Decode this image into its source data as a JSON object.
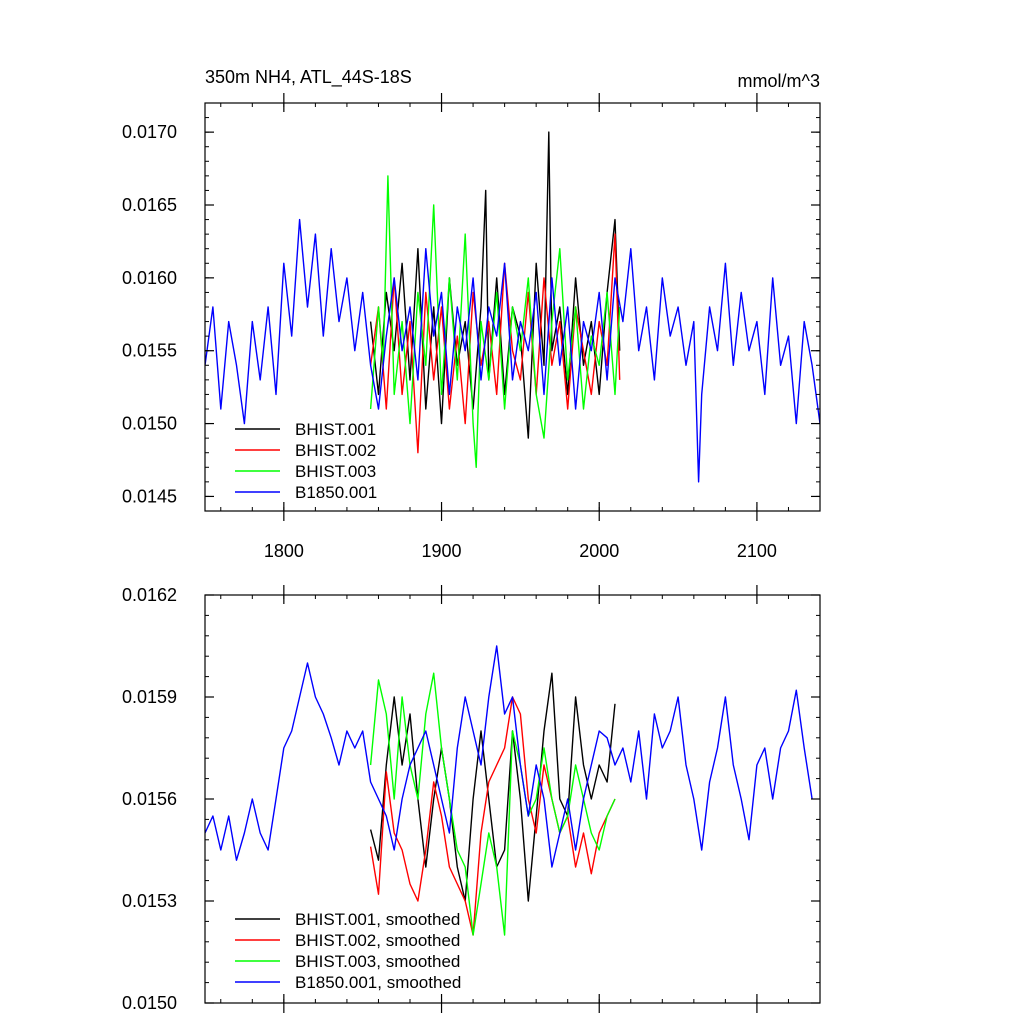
{
  "chart_data": [
    {
      "type": "line",
      "title": "350m NH4, ATL_44S-18S",
      "units": "mmol/m^3",
      "xlim": [
        1750,
        2140
      ],
      "ylim": [
        0.0144,
        0.0172
      ],
      "xticks": [
        1800,
        1900,
        2000,
        2100
      ],
      "xtick_labels": [
        "1800",
        "1900",
        "2000",
        "2100"
      ],
      "yticks": [
        0.0145,
        0.015,
        0.0155,
        0.016,
        0.0165,
        0.017
      ],
      "ytick_labels": [
        "0.0145",
        "0.0150",
        "0.0155",
        "0.0160",
        "0.0165",
        "0.0170"
      ],
      "grid": false,
      "legend_position": "bottom-left",
      "series": [
        {
          "name": "BHIST.001",
          "color": "#000000",
          "x": [
            1855,
            1860,
            1865,
            1870,
            1875,
            1880,
            1885,
            1890,
            1895,
            1900,
            1905,
            1910,
            1915,
            1920,
            1925,
            1928,
            1930,
            1935,
            1940,
            1945,
            1950,
            1955,
            1960,
            1965,
            1968,
            1970,
            1975,
            1980,
            1985,
            1990,
            1995,
            2000,
            2005,
            2010,
            2013
          ],
          "y": [
            0.0157,
            0.0152,
            0.0159,
            0.0155,
            0.0161,
            0.0153,
            0.0162,
            0.0151,
            0.0158,
            0.015,
            0.016,
            0.0154,
            0.0157,
            0.0151,
            0.0158,
            0.0166,
            0.0153,
            0.016,
            0.0152,
            0.0158,
            0.0156,
            0.0149,
            0.0161,
            0.0154,
            0.017,
            0.0155,
            0.0158,
            0.0152,
            0.016,
            0.0154,
            0.0157,
            0.0152,
            0.0159,
            0.0164,
            0.0155
          ]
        },
        {
          "name": "BHIST.002",
          "color": "#ff0000",
          "x": [
            1855,
            1860,
            1865,
            1870,
            1875,
            1880,
            1885,
            1890,
            1895,
            1900,
            1905,
            1910,
            1915,
            1920,
            1925,
            1930,
            1935,
            1940,
            1945,
            1950,
            1955,
            1960,
            1965,
            1970,
            1975,
            1980,
            1985,
            1990,
            1995,
            2000,
            2005,
            2010,
            2013
          ],
          "y": [
            0.0154,
            0.0158,
            0.0151,
            0.016,
            0.0152,
            0.0157,
            0.0148,
            0.0159,
            0.0153,
            0.0158,
            0.0151,
            0.0156,
            0.015,
            0.0159,
            0.0154,
            0.0157,
            0.0152,
            0.0161,
            0.0155,
            0.0153,
            0.0159,
            0.0152,
            0.016,
            0.0154,
            0.0157,
            0.0151,
            0.0158,
            0.0155,
            0.0152,
            0.0157,
            0.0154,
            0.0163,
            0.0153
          ]
        },
        {
          "name": "BHIST.003",
          "color": "#00ff00",
          "x": [
            1855,
            1860,
            1863,
            1866,
            1870,
            1875,
            1880,
            1885,
            1890,
            1895,
            1900,
            1905,
            1910,
            1915,
            1920,
            1922,
            1925,
            1930,
            1935,
            1940,
            1945,
            1950,
            1955,
            1960,
            1965,
            1970,
            1975,
            1980,
            1985,
            1990,
            1995,
            2000,
            2005,
            2010,
            2013
          ],
          "y": [
            0.0151,
            0.0158,
            0.0154,
            0.0167,
            0.0152,
            0.0157,
            0.015,
            0.0159,
            0.0154,
            0.0165,
            0.0152,
            0.016,
            0.0153,
            0.0163,
            0.015,
            0.0147,
            0.0157,
            0.0153,
            0.0159,
            0.0151,
            0.0158,
            0.0155,
            0.016,
            0.0152,
            0.0149,
            0.0157,
            0.0162,
            0.0153,
            0.0158,
            0.0151,
            0.0156,
            0.0154,
            0.0159,
            0.0152,
            0.0158
          ]
        },
        {
          "name": "B1850.001",
          "color": "#0000ff",
          "x": [
            1750,
            1755,
            1760,
            1765,
            1770,
            1775,
            1780,
            1785,
            1790,
            1795,
            1800,
            1805,
            1810,
            1815,
            1820,
            1825,
            1830,
            1835,
            1840,
            1845,
            1850,
            1855,
            1860,
            1865,
            1870,
            1875,
            1880,
            1885,
            1890,
            1895,
            1900,
            1905,
            1910,
            1915,
            1920,
            1925,
            1930,
            1935,
            1940,
            1945,
            1950,
            1955,
            1960,
            1965,
            1970,
            1975,
            1980,
            1985,
            1990,
            1995,
            2000,
            2005,
            2010,
            2015,
            2020,
            2025,
            2030,
            2035,
            2040,
            2045,
            2050,
            2055,
            2060,
            2063,
            2065,
            2070,
            2075,
            2080,
            2085,
            2090,
            2095,
            2100,
            2105,
            2110,
            2115,
            2120,
            2125,
            2130,
            2135,
            2140
          ],
          "y": [
            0.0154,
            0.0158,
            0.0151,
            0.0157,
            0.0154,
            0.015,
            0.0157,
            0.0153,
            0.0158,
            0.0152,
            0.0161,
            0.0156,
            0.0164,
            0.0158,
            0.0163,
            0.0156,
            0.0162,
            0.0157,
            0.016,
            0.0155,
            0.0159,
            0.0154,
            0.0151,
            0.0156,
            0.016,
            0.0155,
            0.0158,
            0.0153,
            0.0162,
            0.0156,
            0.0159,
            0.0152,
            0.0158,
            0.0155,
            0.016,
            0.0153,
            0.0158,
            0.0156,
            0.0161,
            0.0153,
            0.0157,
            0.0155,
            0.0159,
            0.0152,
            0.016,
            0.0154,
            0.0158,
            0.0151,
            0.0157,
            0.0155,
            0.0159,
            0.0153,
            0.016,
            0.0157,
            0.0162,
            0.0155,
            0.0158,
            0.0153,
            0.016,
            0.0156,
            0.0158,
            0.0154,
            0.0157,
            0.0146,
            0.0152,
            0.0158,
            0.0155,
            0.0161,
            0.0154,
            0.0159,
            0.0155,
            0.0157,
            0.0152,
            0.016,
            0.0154,
            0.0156,
            0.015,
            0.0157,
            0.0154,
            0.015
          ]
        }
      ]
    },
    {
      "type": "line",
      "xlim": [
        1750,
        2140
      ],
      "ylim": [
        0.015,
        0.0162
      ],
      "xticks": [
        1800,
        1900,
        2000,
        2100
      ],
      "xtick_labels": [],
      "yticks": [
        0.015,
        0.0153,
        0.0156,
        0.0159,
        0.0162
      ],
      "ytick_labels": [
        "0.0150",
        "0.0153",
        "0.0156",
        "0.0159",
        "0.0162"
      ],
      "grid": false,
      "legend_position": "bottom-left",
      "series": [
        {
          "name": "BHIST.001, smoothed",
          "color": "#000000",
          "x": [
            1855,
            1860,
            1865,
            1870,
            1875,
            1880,
            1885,
            1890,
            1895,
            1900,
            1905,
            1910,
            1915,
            1920,
            1925,
            1930,
            1935,
            1940,
            1945,
            1950,
            1955,
            1960,
            1965,
            1970,
            1975,
            1980,
            1985,
            1990,
            1995,
            2000,
            2005,
            2010
          ],
          "y": [
            0.01551,
            0.01542,
            0.0157,
            0.0159,
            0.0157,
            0.01585,
            0.0156,
            0.0154,
            0.0156,
            0.01575,
            0.0156,
            0.0154,
            0.0153,
            0.0156,
            0.0158,
            0.0156,
            0.0154,
            0.01545,
            0.0158,
            0.0156,
            0.0153,
            0.01555,
            0.0158,
            0.01597,
            0.0156,
            0.01555,
            0.0159,
            0.0157,
            0.0156,
            0.0157,
            0.01565,
            0.01588
          ]
        },
        {
          "name": "BHIST.002, smoothed",
          "color": "#ff0000",
          "x": [
            1855,
            1860,
            1865,
            1870,
            1875,
            1880,
            1885,
            1890,
            1895,
            1900,
            1905,
            1910,
            1915,
            1920,
            1925,
            1930,
            1935,
            1940,
            1945,
            1950,
            1955,
            1960,
            1965,
            1970,
            1975,
            1980,
            1985,
            1990,
            1995,
            2000,
            2005,
            2010
          ],
          "y": [
            0.01546,
            0.01532,
            0.01568,
            0.0155,
            0.01545,
            0.01535,
            0.0153,
            0.01545,
            0.01565,
            0.01555,
            0.0154,
            0.01535,
            0.0153,
            0.0152,
            0.0155,
            0.01565,
            0.0157,
            0.01575,
            0.0159,
            0.01585,
            0.0156,
            0.0155,
            0.0157,
            0.0156,
            0.0155,
            0.01555,
            0.0154,
            0.0155,
            0.01538,
            0.0155,
            0.01555,
            0.0156
          ]
        },
        {
          "name": "BHIST.003, smoothed",
          "color": "#00ff00",
          "x": [
            1855,
            1860,
            1865,
            1870,
            1875,
            1880,
            1885,
            1890,
            1895,
            1900,
            1905,
            1910,
            1915,
            1920,
            1925,
            1930,
            1935,
            1940,
            1945,
            1950,
            1955,
            1960,
            1965,
            1970,
            1975,
            1980,
            1985,
            1990,
            1995,
            2000,
            2005,
            2010
          ],
          "y": [
            0.0157,
            0.01595,
            0.01585,
            0.0156,
            0.0159,
            0.0157,
            0.0156,
            0.01585,
            0.01597,
            0.01575,
            0.0156,
            0.01545,
            0.0154,
            0.0152,
            0.01535,
            0.0155,
            0.0154,
            0.0152,
            0.0158,
            0.0157,
            0.01555,
            0.0156,
            0.01575,
            0.0156,
            0.0155,
            0.01555,
            0.0157,
            0.0156,
            0.0155,
            0.01545,
            0.01555,
            0.0156
          ]
        },
        {
          "name": "B1850.001, smoothed",
          "color": "#0000ff",
          "x": [
            1750,
            1755,
            1760,
            1765,
            1770,
            1775,
            1780,
            1785,
            1790,
            1795,
            1800,
            1805,
            1810,
            1815,
            1820,
            1825,
            1830,
            1835,
            1840,
            1845,
            1850,
            1855,
            1860,
            1865,
            1870,
            1875,
            1880,
            1885,
            1890,
            1895,
            1900,
            1905,
            1910,
            1915,
            1920,
            1925,
            1930,
            1935,
            1940,
            1945,
            1950,
            1955,
            1960,
            1965,
            1970,
            1975,
            1980,
            1985,
            1990,
            1995,
            2000,
            2005,
            2010,
            2015,
            2020,
            2025,
            2030,
            2035,
            2040,
            2045,
            2050,
            2055,
            2060,
            2065,
            2070,
            2075,
            2080,
            2085,
            2090,
            2095,
            2100,
            2105,
            2110,
            2115,
            2120,
            2125,
            2130,
            2135
          ],
          "y": [
            0.0155,
            0.01555,
            0.01545,
            0.01555,
            0.01542,
            0.0155,
            0.0156,
            0.0155,
            0.01545,
            0.0156,
            0.01575,
            0.0158,
            0.0159,
            0.016,
            0.0159,
            0.01585,
            0.01578,
            0.0157,
            0.0158,
            0.01575,
            0.0158,
            0.01565,
            0.0156,
            0.01555,
            0.01545,
            0.0156,
            0.0157,
            0.01575,
            0.0158,
            0.0157,
            0.0156,
            0.0155,
            0.01575,
            0.0159,
            0.0158,
            0.0157,
            0.0159,
            0.01605,
            0.01585,
            0.0159,
            0.0157,
            0.01555,
            0.0157,
            0.0156,
            0.0154,
            0.0155,
            0.0156,
            0.01545,
            0.0156,
            0.0157,
            0.0158,
            0.01578,
            0.0157,
            0.01575,
            0.01565,
            0.0158,
            0.0156,
            0.01585,
            0.01575,
            0.0158,
            0.0159,
            0.0157,
            0.0156,
            0.01545,
            0.01565,
            0.01575,
            0.0159,
            0.0157,
            0.0156,
            0.01548,
            0.0157,
            0.01575,
            0.0156,
            0.01575,
            0.0158,
            0.01592,
            0.01575,
            0.0156
          ]
        }
      ]
    }
  ]
}
